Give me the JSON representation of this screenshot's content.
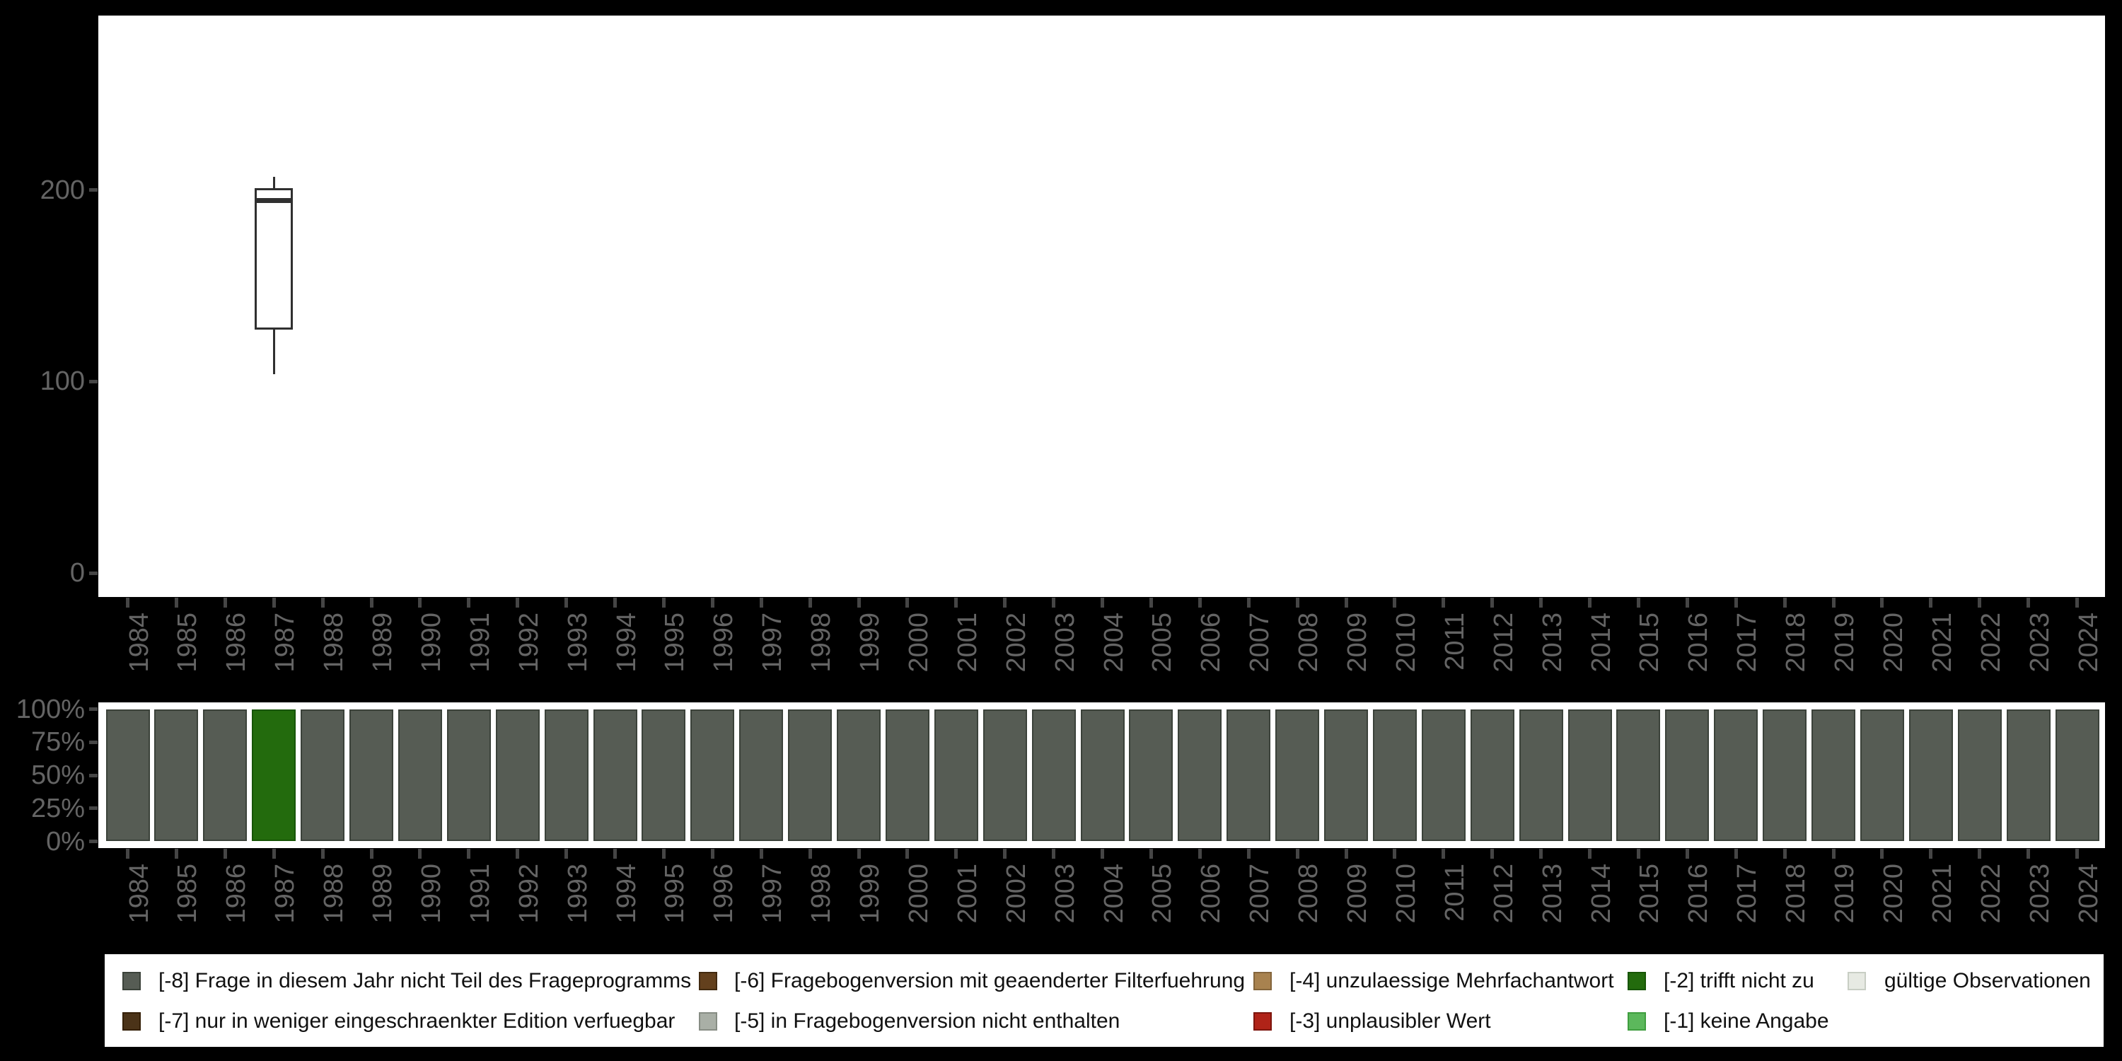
{
  "figure": {
    "background": "#000000",
    "panel_fill": "#ffffff",
    "axis_text_color": "#646464",
    "tick_color": "#454545",
    "box_stroke_color": "#303030"
  },
  "chart_data": [
    {
      "type": "boxplot",
      "title": "",
      "xlabel": "",
      "ylabel": "",
      "categories_full_axis": [
        "1984",
        "1985",
        "1986",
        "1987",
        "1988",
        "1989",
        "1990",
        "1991",
        "1992",
        "1993",
        "1994",
        "1995",
        "1996",
        "1997",
        "1998",
        "1999",
        "2000",
        "2001",
        "2002",
        "2003",
        "2004",
        "2005",
        "2006",
        "2007",
        "2008",
        "2009",
        "2010",
        "2011",
        "2012",
        "2013",
        "2014",
        "2015",
        "2016",
        "2017",
        "2018",
        "2019",
        "2020",
        "2021",
        "2022",
        "2023",
        "2024"
      ],
      "y_ticks": [
        0,
        100,
        200
      ],
      "ylim": [
        -15,
        292
      ],
      "grid": "off",
      "series": [
        {
          "category": "1987",
          "whisker_min": 104,
          "q1": 127,
          "median": 194.5,
          "q3": 201,
          "whisker_max": 207
        }
      ]
    },
    {
      "type": "bar",
      "stacked": true,
      "title": "",
      "xlabel": "",
      "ylabel": "",
      "categories": [
        "1984",
        "1985",
        "1986",
        "1987",
        "1988",
        "1989",
        "1990",
        "1991",
        "1992",
        "1993",
        "1994",
        "1995",
        "1996",
        "1997",
        "1998",
        "1999",
        "2000",
        "2001",
        "2002",
        "2003",
        "2004",
        "2005",
        "2006",
        "2007",
        "2008",
        "2009",
        "2010",
        "2011",
        "2012",
        "2013",
        "2014",
        "2015",
        "2016",
        "2017",
        "2018",
        "2019",
        "2020",
        "2021",
        "2022",
        "2023",
        "2024"
      ],
      "y_tick_labels": [
        "0%",
        "25%",
        "50%",
        "75%",
        "100%"
      ],
      "ylim_percent": [
        0,
        100
      ],
      "grid": "off",
      "values_percent": [
        100,
        100,
        100,
        100,
        100,
        100,
        100,
        100,
        100,
        100,
        100,
        100,
        100,
        100,
        100,
        100,
        100,
        100,
        100,
        100,
        100,
        100,
        100,
        100,
        100,
        100,
        100,
        100,
        100,
        100,
        100,
        100,
        100,
        100,
        100,
        100,
        100,
        100,
        100,
        100,
        100
      ],
      "segment_code_per_year": [
        "-8",
        "-8",
        "-8",
        "-2",
        "-8",
        "-8",
        "-8",
        "-8",
        "-8",
        "-8",
        "-8",
        "-8",
        "-8",
        "-8",
        "-8",
        "-8",
        "-8",
        "-8",
        "-8",
        "-8",
        "-8",
        "-8",
        "-8",
        "-8",
        "-8",
        "-8",
        "-8",
        "-8",
        "-8",
        "-8",
        "-8",
        "-8",
        "-8",
        "-8",
        "-8",
        "-8",
        "-8",
        "-8",
        "-8",
        "-8",
        "-8"
      ]
    }
  ],
  "boxplot_axis": {
    "y_tick_labels": [
      "200",
      "100",
      "0"
    ],
    "y_tick_values": [
      200,
      100,
      0
    ]
  },
  "bar_axis": {
    "y_tick_labels": [
      "100%",
      "75%",
      "50%",
      "25%",
      "0%"
    ],
    "y_tick_values": [
      100,
      75,
      50,
      25,
      0
    ]
  },
  "colors": {
    "-8": {
      "fill": "#565c54",
      "border": "#3b423a"
    },
    "-7": {
      "fill": "#4b3318",
      "border": "#352008"
    },
    "-6": {
      "fill": "#63401d",
      "border": "#422a10"
    },
    "-5": {
      "fill": "#a9afa6",
      "border": "#878d84"
    },
    "-4": {
      "fill": "#a8824f",
      "border": "#84653c"
    },
    "-3": {
      "fill": "#b02318",
      "border": "#7d150d"
    },
    "-2": {
      "fill": "#236b0d",
      "border": "#175505"
    },
    "-1": {
      "fill": "#5cb85c",
      "border": "#3f9e3f"
    },
    "valid": {
      "fill": "#e7eae3",
      "border": "#c8cec4"
    }
  },
  "legend": {
    "items": [
      {
        "code": "-8",
        "text": "[-8] Frage in diesem Jahr nicht Teil des Frageprogramms",
        "col": 0,
        "row": 0
      },
      {
        "code": "-7",
        "text": "[-7] nur in weniger eingeschraenkter Edition verfuegbar",
        "col": 0,
        "row": 1
      },
      {
        "code": "-6",
        "text": "[-6] Fragebogenversion mit geaenderter Filterfuehrung",
        "col": 1,
        "row": 0
      },
      {
        "code": "-5",
        "text": "[-5] in Fragebogenversion nicht enthalten",
        "col": 1,
        "row": 1
      },
      {
        "code": "-4",
        "text": "[-4] unzulaessige Mehrfachantwort",
        "col": 2,
        "row": 0
      },
      {
        "code": "-3",
        "text": "[-3] unplausibler Wert",
        "col": 2,
        "row": 1
      },
      {
        "code": "-2",
        "text": "[-2] trifft nicht zu",
        "col": 3,
        "row": 0
      },
      {
        "code": "-1",
        "text": "[-1] keine Angabe",
        "col": 3,
        "row": 1
      },
      {
        "code": "valid",
        "text": "gültige Observationen",
        "col": 4,
        "row": 0
      }
    ]
  }
}
